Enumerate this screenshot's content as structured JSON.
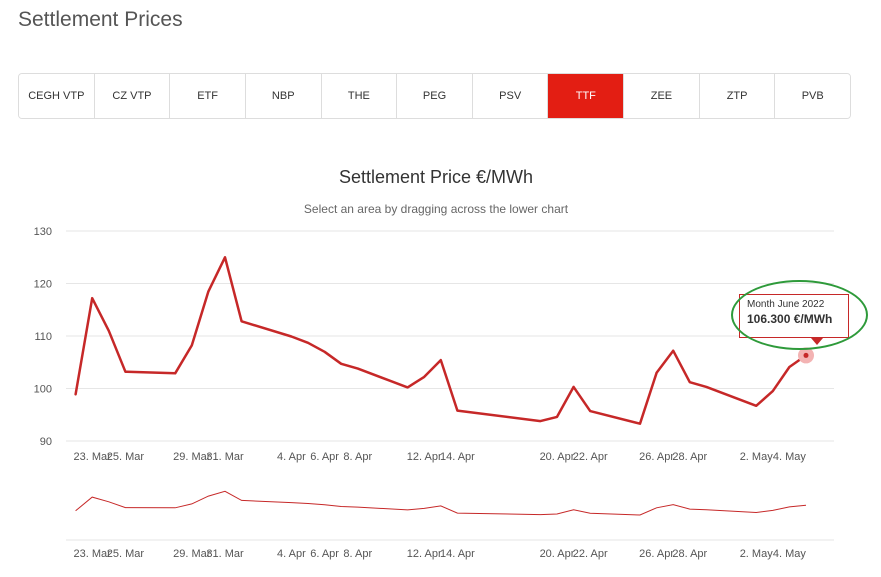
{
  "page": {
    "title": "Settlement Prices"
  },
  "tabs": [
    {
      "label": "CEGH VTP",
      "active": false
    },
    {
      "label": "CZ VTP",
      "active": false
    },
    {
      "label": "ETF",
      "active": false
    },
    {
      "label": "NBP",
      "active": false
    },
    {
      "label": "THE",
      "active": false
    },
    {
      "label": "PEG",
      "active": false
    },
    {
      "label": "PSV",
      "active": false
    },
    {
      "label": "TTF",
      "active": true
    },
    {
      "label": "ZEE",
      "active": false
    },
    {
      "label": "ZTP",
      "active": false
    },
    {
      "label": "PVB",
      "active": false
    }
  ],
  "tooltip": {
    "label": "Month June 2022",
    "value": "106.300 €/MWh"
  },
  "colors": {
    "accent": "#e31e13",
    "series": "#c62828",
    "highlight_marker": "#f3b3b3",
    "annotation": "#2e9a3a",
    "grid": "#e6e6e6"
  },
  "chart_data": {
    "type": "line",
    "title": "Settlement Price €/MWh",
    "subtitle": "Select an area by dragging across the lower chart",
    "xlabel": "",
    "ylabel": "",
    "ylim": [
      90,
      130
    ],
    "y_ticks": [
      90,
      100,
      110,
      120,
      130
    ],
    "grid": true,
    "x_tick_labels": [
      "23. Mar",
      "25. Mar",
      "29. Mar",
      "31. Mar",
      "4. Apr",
      "6. Apr",
      "8. Apr",
      "12. Apr",
      "14. Apr",
      "20. Apr",
      "22. Apr",
      "26. Apr",
      "28. Apr",
      "2. May",
      "4. May"
    ],
    "x_tick_dates": [
      "2022-03-23",
      "2022-03-25",
      "2022-03-29",
      "2022-03-31",
      "2022-04-04",
      "2022-04-06",
      "2022-04-08",
      "2022-04-12",
      "2022-04-14",
      "2022-04-20",
      "2022-04-22",
      "2022-04-26",
      "2022-04-28",
      "2022-05-02",
      "2022-05-04"
    ],
    "x": [
      "2022-03-22",
      "2022-03-23",
      "2022-03-24",
      "2022-03-25",
      "2022-03-28",
      "2022-03-29",
      "2022-03-30",
      "2022-03-31",
      "2022-04-01",
      "2022-04-04",
      "2022-04-05",
      "2022-04-06",
      "2022-04-07",
      "2022-04-08",
      "2022-04-11",
      "2022-04-12",
      "2022-04-13",
      "2022-04-14",
      "2022-04-19",
      "2022-04-20",
      "2022-04-21",
      "2022-04-22",
      "2022-04-25",
      "2022-04-26",
      "2022-04-27",
      "2022-04-28",
      "2022-04-29",
      "2022-05-02",
      "2022-05-03",
      "2022-05-04",
      "2022-05-05"
    ],
    "series": [
      {
        "values": [
          98.9,
          117.2,
          111.0,
          103.2,
          102.9,
          108.2,
          118.5,
          125.0,
          112.8,
          109.9,
          108.7,
          107.0,
          104.7,
          103.8,
          100.2,
          102.2,
          105.4,
          95.8,
          93.8,
          94.6,
          100.3,
          95.7,
          93.3,
          103.0,
          107.2,
          101.2,
          100.3,
          96.7,
          99.5,
          104.1,
          106.3
        ]
      }
    ],
    "navigator": true
  }
}
